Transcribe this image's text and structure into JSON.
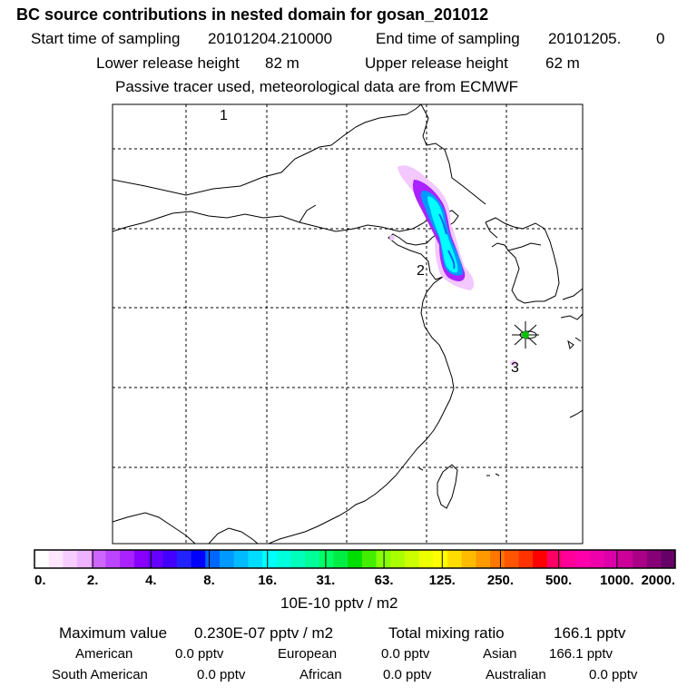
{
  "header": {
    "title": "BC  source contributions in nested domain for gosan_201012",
    "start_label": "Start time of sampling",
    "start_value": "20101204.210000",
    "end_label": "End time of sampling",
    "end_value": "20101205.",
    "end_extra": "0",
    "lower_label": "Lower release height",
    "lower_value": "82 m",
    "upper_label": "Upper release height",
    "upper_value": "62 m",
    "note": "Passive tracer used, meteorological data are from ECMWF"
  },
  "map": {
    "labels": [
      "3",
      "2",
      "1"
    ],
    "receptor_color": "#00c000"
  },
  "colorbar": {
    "ticks": [
      "0.",
      "2.",
      "4.",
      "8.",
      "16.",
      "31.",
      "63.",
      "125.",
      "250.",
      "500.",
      "1000.",
      "2000."
    ],
    "unit": "10E-10 pptv / m2",
    "colors": [
      "#ffffff",
      "#ffe6ff",
      "#f7ccff",
      "#eeb3ff",
      "#cc66ff",
      "#bb44ff",
      "#aa22ff",
      "#8800ff",
      "#6600ff",
      "#4400ff",
      "#2222ff",
      "#0000ff",
      "#0066ff",
      "#0099ff",
      "#00bbff",
      "#00ddff",
      "#00ffff",
      "#00ffdd",
      "#00ffbb",
      "#00ff99",
      "#00ff66",
      "#00ee44",
      "#00dd00",
      "#44ee00",
      "#88ff00",
      "#aaff00",
      "#ccff00",
      "#eeff00",
      "#ffff00",
      "#ffdd00",
      "#ffbb00",
      "#ff9900",
      "#ff7700",
      "#ff5500",
      "#ff3300",
      "#ff0000",
      "#ff0066",
      "#ff0099",
      "#ff00aa",
      "#ee00aa",
      "#dd00aa",
      "#cc0099",
      "#aa0088",
      "#880077",
      "#660066"
    ]
  },
  "stats": {
    "max_label": "Maximum value",
    "max_value": "0.230E-07 pptv / m2",
    "total_label": "Total mixing ratio",
    "total_value": "166.1 pptv",
    "american_label": "American",
    "american_value": "0.0 pptv",
    "european_label": "European",
    "european_value": "0.0 pptv",
    "asian_label": "Asian",
    "asian_value": "166.1 pptv",
    "south_american_label": "South American",
    "south_american_value": "0.0 pptv",
    "african_label": "African",
    "african_value": "0.0 pptv",
    "australian_label": "Australian",
    "australian_value": "0.0 pptv"
  }
}
